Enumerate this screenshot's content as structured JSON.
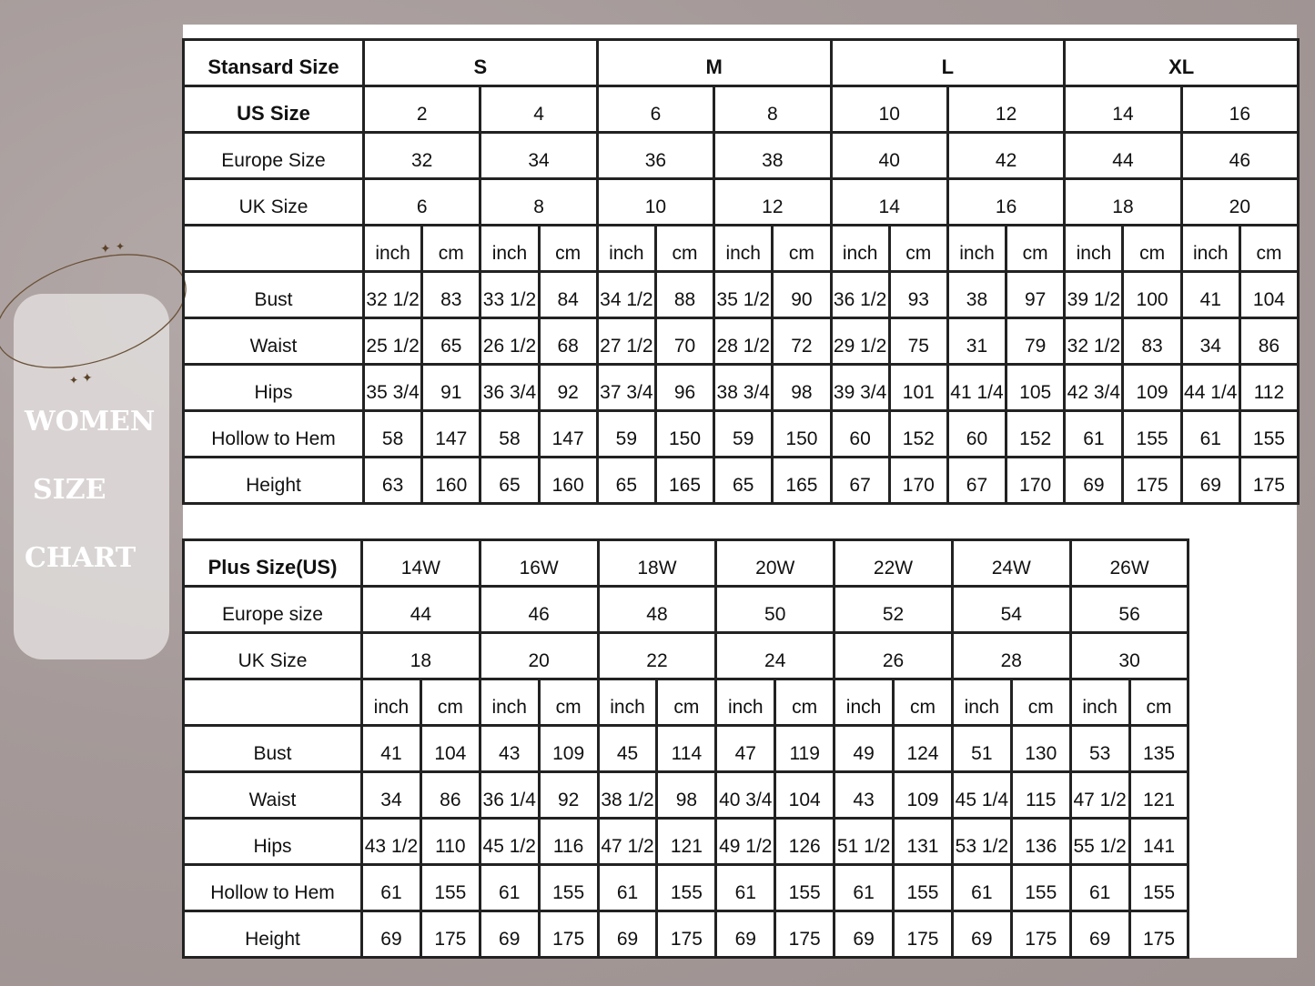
{
  "side_title": [
    "WOMEN",
    "SIZE",
    "CHART"
  ],
  "colors": {
    "background": "#a89d9c",
    "panel": "#e1dddc",
    "ring": "#6b5238"
  },
  "standard": {
    "header_label": "Stansard Size",
    "sizes": [
      "S",
      "M",
      "L",
      "XL"
    ],
    "us_label": "US Size",
    "us": [
      "2",
      "4",
      "6",
      "8",
      "10",
      "12",
      "14",
      "16"
    ],
    "eu_label": "Europe Size",
    "eu": [
      "32",
      "34",
      "36",
      "38",
      "40",
      "42",
      "44",
      "46"
    ],
    "uk_label": "UK Size",
    "uk": [
      "6",
      "8",
      "10",
      "12",
      "14",
      "16",
      "18",
      "20"
    ],
    "units": [
      "inch",
      "cm"
    ],
    "measurements": [
      {
        "label": "Bust",
        "values": [
          "32 1/2",
          "83",
          "33 1/2",
          "84",
          "34 1/2",
          "88",
          "35 1/2",
          "90",
          "36 1/2",
          "93",
          "38",
          "97",
          "39 1/2",
          "100",
          "41",
          "104"
        ]
      },
      {
        "label": "Waist",
        "values": [
          "25 1/2",
          "65",
          "26 1/2",
          "68",
          "27 1/2",
          "70",
          "28 1/2",
          "72",
          "29 1/2",
          "75",
          "31",
          "79",
          "32 1/2",
          "83",
          "34",
          "86"
        ]
      },
      {
        "label": "Hips",
        "values": [
          "35 3/4",
          "91",
          "36 3/4",
          "92",
          "37 3/4",
          "96",
          "38 3/4",
          "98",
          "39 3/4",
          "101",
          "41 1/4",
          "105",
          "42 3/4",
          "109",
          "44 1/4",
          "112"
        ]
      },
      {
        "label": "Hollow to Hem",
        "values": [
          "58",
          "147",
          "58",
          "147",
          "59",
          "150",
          "59",
          "150",
          "60",
          "152",
          "60",
          "152",
          "61",
          "155",
          "61",
          "155"
        ]
      },
      {
        "label": "Height",
        "values": [
          "63",
          "160",
          "65",
          "160",
          "65",
          "165",
          "65",
          "165",
          "67",
          "170",
          "67",
          "170",
          "69",
          "175",
          "69",
          "175"
        ]
      }
    ]
  },
  "plus": {
    "header_label": "Plus Size(US)",
    "us": [
      "14W",
      "16W",
      "18W",
      "20W",
      "22W",
      "24W",
      "26W"
    ],
    "eu_label": "Europe size",
    "eu": [
      "44",
      "46",
      "48",
      "50",
      "52",
      "54",
      "56"
    ],
    "uk_label": "UK Size",
    "uk": [
      "18",
      "20",
      "22",
      "24",
      "26",
      "28",
      "30"
    ],
    "units": [
      "inch",
      "cm"
    ],
    "measurements": [
      {
        "label": "Bust",
        "values": [
          "41",
          "104",
          "43",
          "109",
          "45",
          "114",
          "47",
          "119",
          "49",
          "124",
          "51",
          "130",
          "53",
          "135"
        ]
      },
      {
        "label": "Waist",
        "values": [
          "34",
          "86",
          "36 1/4",
          "92",
          "38 1/2",
          "98",
          "40 3/4",
          "104",
          "43",
          "109",
          "45 1/4",
          "115",
          "47 1/2",
          "121"
        ]
      },
      {
        "label": "Hips",
        "values": [
          "43 1/2",
          "110",
          "45 1/2",
          "116",
          "47 1/2",
          "121",
          "49 1/2",
          "126",
          "51 1/2",
          "131",
          "53 1/2",
          "136",
          "55 1/2",
          "141"
        ]
      },
      {
        "label": "Hollow to Hem",
        "values": [
          "61",
          "155",
          "61",
          "155",
          "61",
          "155",
          "61",
          "155",
          "61",
          "155",
          "61",
          "155",
          "61",
          "155"
        ]
      },
      {
        "label": "Height",
        "values": [
          "69",
          "175",
          "69",
          "175",
          "69",
          "175",
          "69",
          "175",
          "69",
          "175",
          "69",
          "175",
          "69",
          "175"
        ]
      }
    ]
  }
}
